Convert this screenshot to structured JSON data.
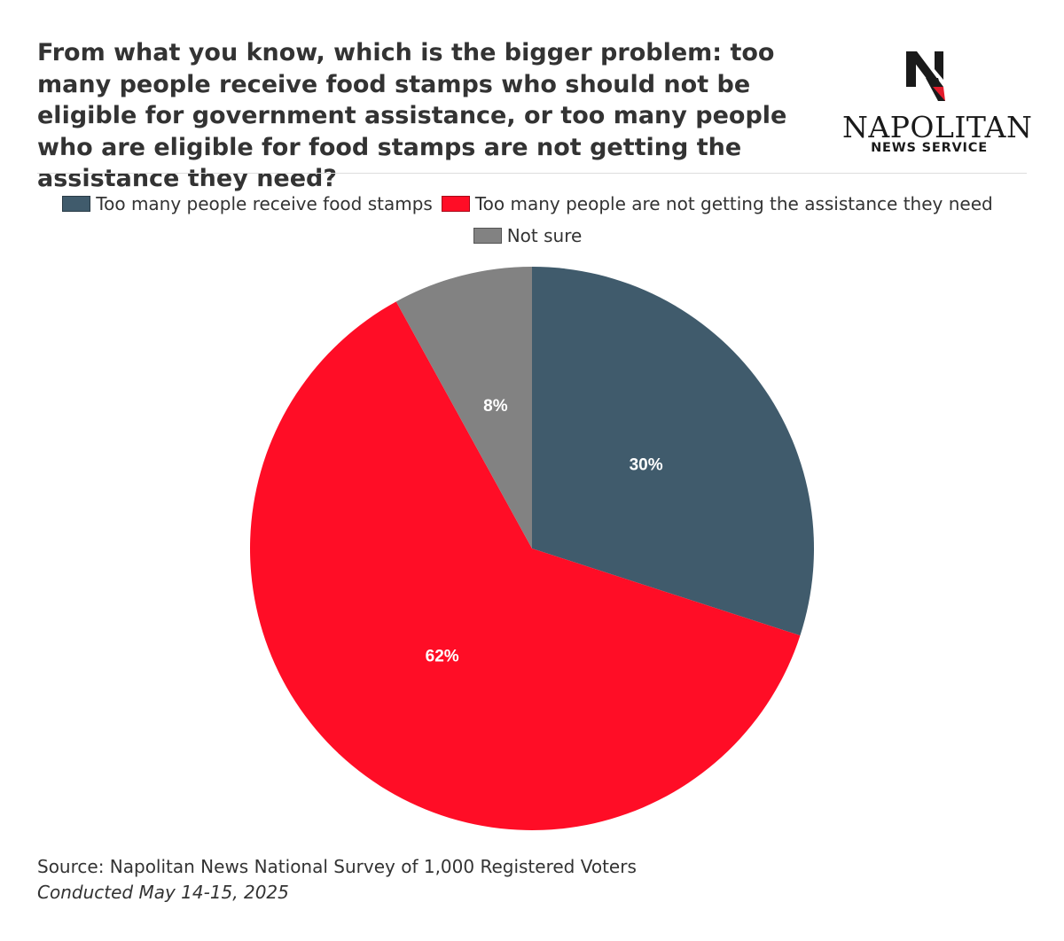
{
  "title": "From what you know, which is the bigger problem: too many people receive food stamps who should not be eligible for government assistance, or too many people who are eligible for food stamps are not getting the assistance they need?",
  "logo": {
    "name": "NAPOLITAN",
    "subtitle": "NEWS SERVICE",
    "mark": "N"
  },
  "chart_data": {
    "type": "pie",
    "title": "From what you know, which is the bigger problem: too many people receive food stamps who should not be eligible for government assistance, or too many people who are eligible for food stamps are not getting the assistance they need?",
    "categories": [
      "Too many people receive food stamps",
      "Too many people are not getting the assistance they need",
      "Not sure"
    ],
    "values": [
      30,
      62,
      8
    ],
    "labels": [
      "30%",
      "62%",
      "8%"
    ],
    "colors": [
      "#405b6c",
      "#ff0d26",
      "#828282"
    ],
    "legend_position": "top-center"
  },
  "footer": {
    "source": "Source: Napolitan News National Survey of 1,000 Registered Voters",
    "conducted": "Conducted May 14-15, 2025"
  }
}
